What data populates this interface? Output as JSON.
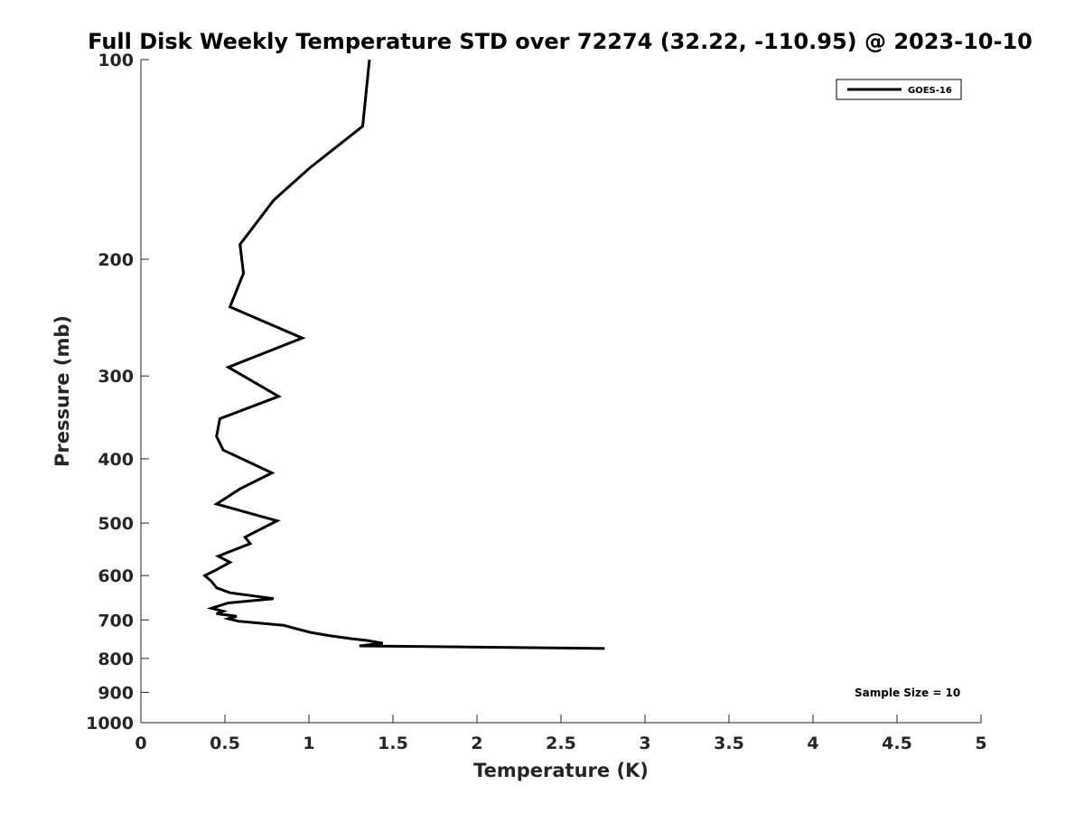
{
  "chart_data": {
    "type": "line",
    "title": "Full Disk Weekly Temperature STD over 72274 (32.22, -110.95) @ 2023-10-10",
    "xlabel": "Temperature (K)",
    "ylabel": "Pressure (mb)",
    "xlim": [
      0,
      5
    ],
    "ylim": [
      100,
      1000
    ],
    "y_scale": "log",
    "y_reversed": true,
    "xticks": [
      "0",
      "0.5",
      "1",
      "1.5",
      "2",
      "2.5",
      "3",
      "3.5",
      "4",
      "4.5",
      "5"
    ],
    "yticks": [
      "100",
      "200",
      "300",
      "400",
      "500",
      "600",
      "700",
      "800",
      "900",
      "1000"
    ],
    "grid": false,
    "legend_position": "top-right",
    "series": [
      {
        "name": "GOES-16",
        "color": "#000000",
        "points": [
          [
            1.36,
            100
          ],
          [
            1.32,
            126
          ],
          [
            1.0,
            146
          ],
          [
            0.79,
            163
          ],
          [
            0.59,
            190
          ],
          [
            0.61,
            210
          ],
          [
            0.53,
            236
          ],
          [
            0.96,
            263
          ],
          [
            0.52,
            291
          ],
          [
            0.82,
            322
          ],
          [
            0.47,
            348
          ],
          [
            0.45,
            370
          ],
          [
            0.49,
            388
          ],
          [
            0.78,
            420
          ],
          [
            0.59,
            444
          ],
          [
            0.45,
            468
          ],
          [
            0.81,
            496
          ],
          [
            0.62,
            525
          ],
          [
            0.65,
            537
          ],
          [
            0.46,
            561
          ],
          [
            0.53,
            573
          ],
          [
            0.45,
            588
          ],
          [
            0.38,
            600
          ],
          [
            0.42,
            612
          ],
          [
            0.45,
            626
          ],
          [
            0.53,
            637
          ],
          [
            0.79,
            650
          ],
          [
            0.52,
            660
          ],
          [
            0.42,
            672
          ],
          [
            0.49,
            679
          ],
          [
            0.45,
            685
          ],
          [
            0.57,
            691
          ],
          [
            0.52,
            697
          ],
          [
            0.58,
            703
          ],
          [
            0.85,
            713
          ],
          [
            0.91,
            720
          ],
          [
            1.01,
            731
          ],
          [
            1.12,
            739
          ],
          [
            1.25,
            747
          ],
          [
            1.35,
            752
          ],
          [
            1.44,
            759
          ],
          [
            1.3,
            766
          ],
          [
            2.76,
            773
          ]
        ]
      }
    ],
    "annotations": [
      "Sample Size = 10"
    ]
  }
}
